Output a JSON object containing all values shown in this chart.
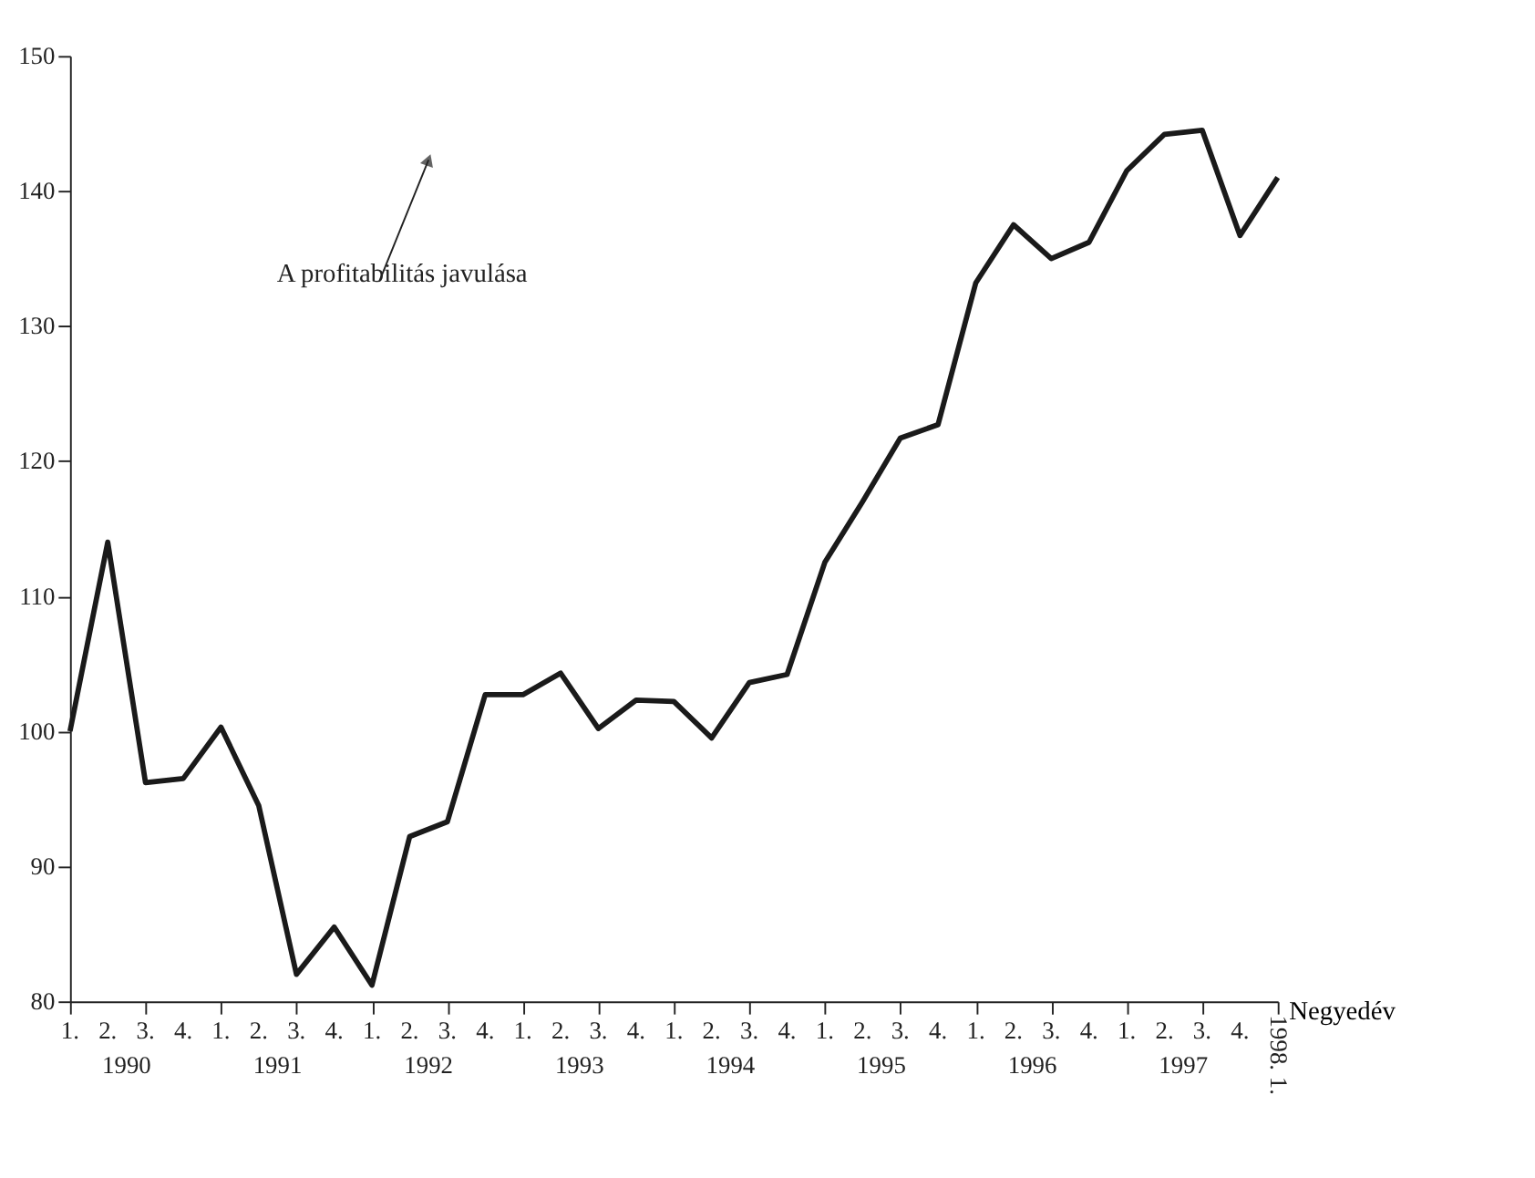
{
  "chart_data": {
    "type": "line",
    "categories": [
      "1.",
      "2.",
      "3.",
      "4.",
      "1.",
      "2.",
      "3.",
      "4.",
      "1.",
      "2.",
      "3.",
      "4.",
      "1.",
      "2.",
      "3.",
      "4.",
      "1.",
      "2.",
      "3.",
      "4.",
      "1.",
      "2.",
      "3.",
      "4.",
      "1.",
      "2.",
      "3.",
      "4.",
      "1.",
      "2.",
      "3.",
      "4.",
      "1998. 1."
    ],
    "series": [
      {
        "color": "#1a1a1a",
        "values": [
          100,
          114,
          96.2,
          96.5,
          100.3,
          94.5,
          82,
          85.5,
          81.2,
          92.2,
          93.3,
          102.7,
          102.7,
          104.3,
          100.2,
          102.3,
          102.2,
          99.5,
          103.6,
          104.2,
          112.5,
          117,
          121.7,
          122.7,
          133.2,
          137.5,
          135,
          136.2,
          141.5,
          144.2,
          144.5,
          136.7,
          141
        ]
      }
    ],
    "xlabel": "Negyedév",
    "ylim": [
      80,
      150
    ],
    "yticks": [
      80,
      90,
      100,
      110,
      120,
      130,
      140,
      150
    ],
    "annotations": [
      "A profitabilitás javulása",
      "1990",
      "1991",
      "1992",
      "1993",
      "1994",
      "1995",
      "1996",
      "1997"
    ],
    "grid": false,
    "marker": "none",
    "line_style": "solid"
  }
}
